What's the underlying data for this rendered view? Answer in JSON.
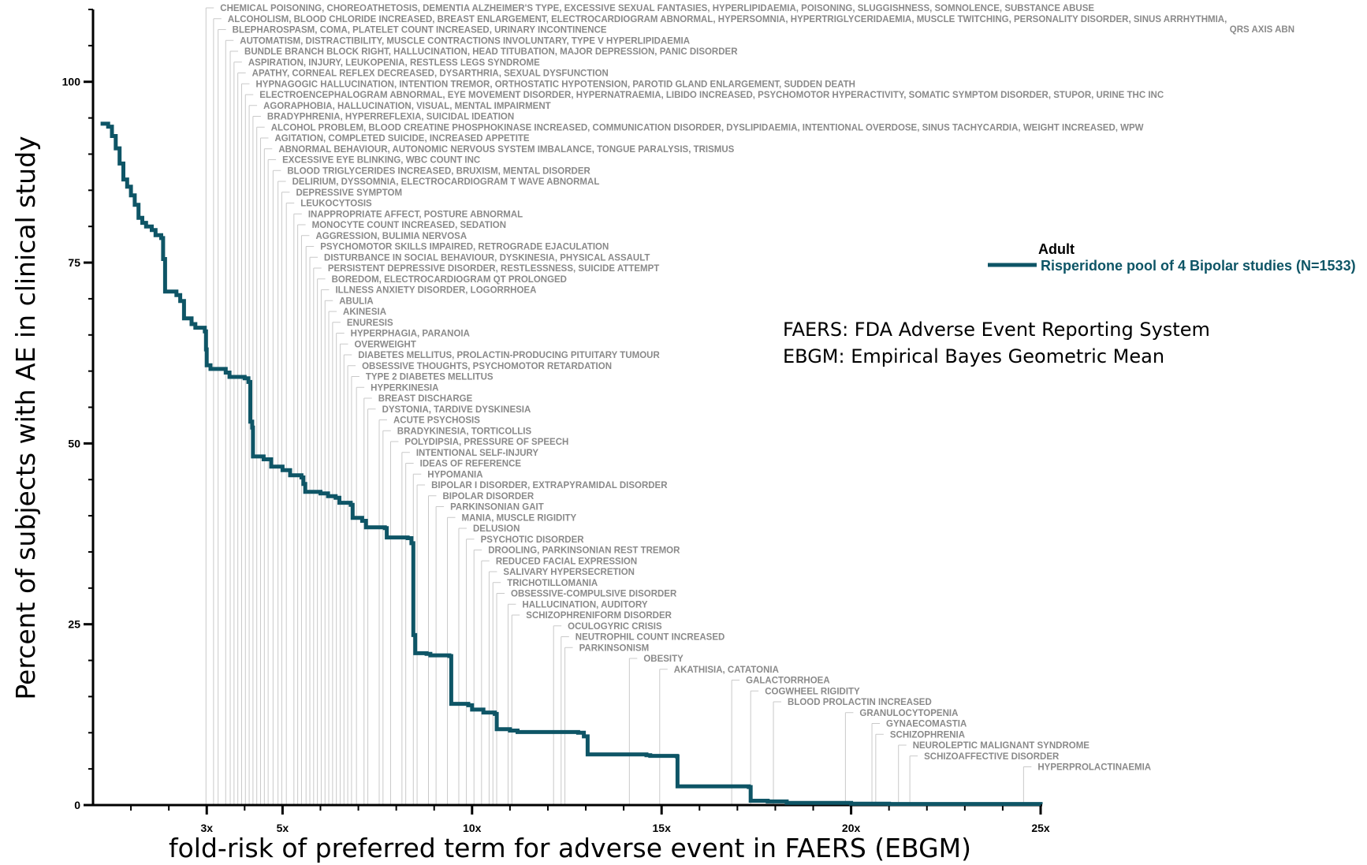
{
  "chart_data": {
    "type": "line",
    "xlabel": "fold-risk of preferred term for adverse event in FAERS (EBGM)",
    "ylabel": "Percent of subjects with AE in clinical study",
    "xlim": [
      0,
      25
    ],
    "ylim": [
      0,
      110
    ],
    "x_ticks": [
      {
        "value": 3,
        "label": "3x"
      },
      {
        "value": 5,
        "label": "5x"
      },
      {
        "value": 10,
        "label": "10x"
      },
      {
        "value": 15,
        "label": "15x"
      },
      {
        "value": 20,
        "label": "20x"
      },
      {
        "value": 25,
        "label": "25x"
      }
    ],
    "y_ticks": [
      {
        "value": 0,
        "label": "0"
      },
      {
        "value": 25,
        "label": "25"
      },
      {
        "value": 50,
        "label": "50"
      },
      {
        "value": 75,
        "label": "75"
      },
      {
        "value": 100,
        "label": "100"
      }
    ],
    "legend": {
      "title": "Adult",
      "position": "right",
      "entries": [
        {
          "name": "Risperidone pool of 4 Bipolar studies (N=1533)",
          "color": "#0e5566"
        }
      ]
    },
    "notes": [
      "FAERS: FDA Adverse Event Reporting System",
      "EBGM: Empirical Bayes Geometric Mean"
    ],
    "series": [
      {
        "name": "Risperidone pool of 4 Bipolar studies (N=1533)",
        "color": "#0e5566",
        "points": [
          [
            0.2,
            94.2
          ],
          [
            0.4,
            93.8
          ],
          [
            0.5,
            92.5
          ],
          [
            0.6,
            90.8
          ],
          [
            0.7,
            88.7
          ],
          [
            0.8,
            86.5
          ],
          [
            0.9,
            85.5
          ],
          [
            1.0,
            84.3
          ],
          [
            1.1,
            83.0
          ],
          [
            1.2,
            81.2
          ],
          [
            1.3,
            80.5
          ],
          [
            1.4,
            80.0
          ],
          [
            1.55,
            79.5
          ],
          [
            1.65,
            78.8
          ],
          [
            1.8,
            78.4
          ],
          [
            1.85,
            75.5
          ],
          [
            1.9,
            71.0
          ],
          [
            2.2,
            70.5
          ],
          [
            2.3,
            69.7
          ],
          [
            2.4,
            67.3
          ],
          [
            2.6,
            66.5
          ],
          [
            2.7,
            66.0
          ],
          [
            2.95,
            65.5
          ],
          [
            2.98,
            63.0
          ],
          [
            3.0,
            60.8
          ],
          [
            3.1,
            60.3
          ],
          [
            3.5,
            59.8
          ],
          [
            3.6,
            59.2
          ],
          [
            4.0,
            59.0
          ],
          [
            4.1,
            58.5
          ],
          [
            4.15,
            53.0
          ],
          [
            4.2,
            52.2
          ],
          [
            4.22,
            48.2
          ],
          [
            4.5,
            47.8
          ],
          [
            4.7,
            46.8
          ],
          [
            5.0,
            46.3
          ],
          [
            5.2,
            45.6
          ],
          [
            5.5,
            45.3
          ],
          [
            5.55,
            44.4
          ],
          [
            5.6,
            43.3
          ],
          [
            6.0,
            43.1
          ],
          [
            6.2,
            42.7
          ],
          [
            6.4,
            42.5
          ],
          [
            6.5,
            41.8
          ],
          [
            6.8,
            41.5
          ],
          [
            6.85,
            39.7
          ],
          [
            7.1,
            39.3
          ],
          [
            7.2,
            38.4
          ],
          [
            7.7,
            38.3
          ],
          [
            7.75,
            37.0
          ],
          [
            8.3,
            36.9
          ],
          [
            8.4,
            36.2
          ],
          [
            8.45,
            23.5
          ],
          [
            8.5,
            21.0
          ],
          [
            8.8,
            20.9
          ],
          [
            8.9,
            20.7
          ],
          [
            9.4,
            20.6
          ],
          [
            9.45,
            14.0
          ],
          [
            9.9,
            13.8
          ],
          [
            10.0,
            13.2
          ],
          [
            10.3,
            12.8
          ],
          [
            10.6,
            12.6
          ],
          [
            10.65,
            10.5
          ],
          [
            11.0,
            10.3
          ],
          [
            11.2,
            10.1
          ],
          [
            12.8,
            10.0
          ],
          [
            12.95,
            9.5
          ],
          [
            13.05,
            7.0
          ],
          [
            14.6,
            6.9
          ],
          [
            14.7,
            6.8
          ],
          [
            15.4,
            6.75
          ],
          [
            15.42,
            2.6
          ],
          [
            17.3,
            2.5
          ],
          [
            17.35,
            0.6
          ],
          [
            17.8,
            0.5
          ],
          [
            18.3,
            0.3
          ],
          [
            20.0,
            0.2
          ],
          [
            21.0,
            0.15
          ],
          [
            25.0,
            0.1
          ]
        ]
      }
    ],
    "annotations": [
      {
        "x": 2.98,
        "label": "CHEMICAL POISONING, CHOREOATHETOSIS, DEMENTIA ALZHEIMER'S TYPE, EXCESSIVE SEXUAL FANTASIES, HYPERLIPIDAEMIA, POISONING, SLUGGISHNESS, SOMNOLENCE, SUBSTANCE ABUSE"
      },
      {
        "x": 3.18,
        "label": "ALCOHOLISM, BLOOD CHLORIDE INCREASED, BREAST ENLARGEMENT, ELECTROCARDIOGRAM ABNORMAL, HYPERSOMNIA, HYPERTRIGLYCERIDAEMIA, MUSCLE TWITCHING, PERSONALITY DISORDER, SINUS ARRHYTHMIA,",
        "label2": "QRS AXIS ABN"
      },
      {
        "x": 3.3,
        "label": "BLEPHAROSPASM, COMA, PLATELET COUNT INCREASED, URINARY INCONTINENCE"
      },
      {
        "x": 3.5,
        "label": "AUTOMATISM, DISTRACTIBILITY, MUSCLE CONTRACTIONS INVOLUNTARY, TYPE V HYPERLIPIDAEMIA"
      },
      {
        "x": 3.62,
        "label": "BUNDLE BRANCH BLOCK RIGHT, HALLUCINATION, HEAD TITUBATION, MAJOR DEPRESSION, PANIC DISORDER"
      },
      {
        "x": 3.72,
        "label": "ASPIRATION, INJURY, LEUKOPENIA, RESTLESS LEGS SYNDROME"
      },
      {
        "x": 3.82,
        "label": "APATHY, CORNEAL REFLEX DECREASED, DYSARTHRIA, SEXUAL DYSFUNCTION"
      },
      {
        "x": 3.92,
        "label": "HYPNAGOGIC HALLUCINATION, INTENTION TREMOR, ORTHOSTATIC HYPOTENSION, PAROTID GLAND ENLARGEMENT, SUDDEN DEATH"
      },
      {
        "x": 4.02,
        "label": "ELECTROENCEPHALOGRAM ABNORMAL, EYE MOVEMENT DISORDER, HYPERNATRAEMIA, LIBIDO INCREASED, PSYCHOMOTOR HYPERACTIVITY, SOMATIC SYMPTOM DISORDER, STUPOR, URINE THC INC"
      },
      {
        "x": 4.12,
        "label": "AGORAPHOBIA, HALLUCINATION, VISUAL, MENTAL IMPAIRMENT"
      },
      {
        "x": 4.22,
        "label": "BRADYPHRENIA, HYPERREFLEXIA, SUICIDAL IDEATION"
      },
      {
        "x": 4.32,
        "label": "ALCOHOL PROBLEM, BLOOD CREATINE PHOSPHOKINASE INCREASED, COMMUNICATION DISORDER, DYSLIPIDAEMIA, INTENTIONAL OVERDOSE, SINUS TACHYCARDIA, WEIGHT INCREASED, WPW"
      },
      {
        "x": 4.42,
        "label": "AGITATION, COMPLETED SUICIDE, INCREASED APPETITE"
      },
      {
        "x": 4.52,
        "label": "ABNORMAL BEHAVIOUR, AUTONOMIC NERVOUS SYSTEM IMBALANCE, TONGUE PARALYSIS, TRISMUS"
      },
      {
        "x": 4.62,
        "label": "EXCESSIVE EYE BLINKING, WBC COUNT INC"
      },
      {
        "x": 4.75,
        "label": "BLOOD TRIGLYCERIDES INCREASED, BRUXISM, MENTAL DISORDER"
      },
      {
        "x": 4.88,
        "label": "DELIRIUM, DYSSOMNIA, ELECTROCARDIOGRAM T WAVE ABNORMAL"
      },
      {
        "x": 4.98,
        "label": "DEPRESSIVE SYMPTOM"
      },
      {
        "x": 5.1,
        "label": "LEUKOCYTOSIS"
      },
      {
        "x": 5.3,
        "label": "INAPPROPRIATE AFFECT, POSTURE ABNORMAL"
      },
      {
        "x": 5.4,
        "label": "MONOCYTE COUNT INCREASED, SEDATION"
      },
      {
        "x": 5.5,
        "label": "AGGRESSION, BULIMIA NERVOSA"
      },
      {
        "x": 5.62,
        "label": "PSYCHOMOTOR SKILLS IMPAIRED, RETROGRADE EJACULATION"
      },
      {
        "x": 5.72,
        "label": "DISTURBANCE IN SOCIAL BEHAVIOUR, DYSKINESIA, PHYSICAL ASSAULT"
      },
      {
        "x": 5.82,
        "label": "PERSISTENT DEPRESSIVE DISORDER, RESTLESSNESS, SUICIDE ATTEMPT"
      },
      {
        "x": 5.92,
        "label": "BOREDOM, ELECTROCARDIOGRAM QT PROLONGED"
      },
      {
        "x": 6.02,
        "label": "ILLNESS ANXIETY DISORDER, LOGORRHOEA"
      },
      {
        "x": 6.12,
        "label": "ABULIA"
      },
      {
        "x": 6.22,
        "label": "AKINESIA"
      },
      {
        "x": 6.32,
        "label": "ENURESIS"
      },
      {
        "x": 6.42,
        "label": "HYPERPHAGIA, PARANOIA"
      },
      {
        "x": 6.52,
        "label": "OVERWEIGHT"
      },
      {
        "x": 6.62,
        "label": "DIABETES MELLITUS, PROLACTIN-PRODUCING PITUITARY TUMOUR"
      },
      {
        "x": 6.72,
        "label": "OBSESSIVE THOUGHTS, PSYCHOMOTOR RETARDATION"
      },
      {
        "x": 6.82,
        "label": "TYPE 2 DIABETES MELLITUS"
      },
      {
        "x": 6.95,
        "label": "HYPERKINESIA"
      },
      {
        "x": 7.15,
        "label": "BREAST DISCHARGE"
      },
      {
        "x": 7.25,
        "label": "DYSTONIA, TARDIVE DYSKINESIA"
      },
      {
        "x": 7.55,
        "label": "ACUTE PSYCHOSIS"
      },
      {
        "x": 7.65,
        "label": "BRADYKINESIA, TORTICOLLIS"
      },
      {
        "x": 7.85,
        "label": "POLYDIPSIA, PRESSURE OF SPEECH"
      },
      {
        "x": 8.15,
        "label": "INTENTIONAL SELF-INJURY"
      },
      {
        "x": 8.25,
        "label": "IDEAS OF REFERENCE"
      },
      {
        "x": 8.45,
        "label": "HYPOMANIA"
      },
      {
        "x": 8.55,
        "label": "BIPOLAR I DISORDER, EXTRAPYRAMIDAL DISORDER"
      },
      {
        "x": 8.85,
        "label": "BIPOLAR DISORDER"
      },
      {
        "x": 9.05,
        "label": "PARKINSONIAN GAIT"
      },
      {
        "x": 9.35,
        "label": "MANIA, MUSCLE RIGIDITY"
      },
      {
        "x": 9.65,
        "label": "DELUSION"
      },
      {
        "x": 9.85,
        "label": "PSYCHOTIC DISORDER"
      },
      {
        "x": 10.05,
        "label": "DROOLING, PARKINSONIAN REST TREMOR"
      },
      {
        "x": 10.25,
        "label": "REDUCED FACIAL EXPRESSION"
      },
      {
        "x": 10.45,
        "label": "SALIVARY HYPERSECRETION"
      },
      {
        "x": 10.55,
        "label": "TRICHOTILLOMANIA"
      },
      {
        "x": 10.65,
        "label": "OBSESSIVE-COMPULSIVE DISORDER"
      },
      {
        "x": 10.95,
        "label": "HALLUCINATION, AUDITORY"
      },
      {
        "x": 11.05,
        "label": "SCHIZOPHRENIFORM DISORDER"
      },
      {
        "x": 12.15,
        "label": "OCULOGYRIC CRISIS"
      },
      {
        "x": 12.35,
        "label": "NEUTROPHIL COUNT INCREASED"
      },
      {
        "x": 12.45,
        "label": "PARKINSONISM"
      },
      {
        "x": 14.15,
        "label": "OBESITY"
      },
      {
        "x": 14.95,
        "label": "AKATHISIA, CATATONIA"
      },
      {
        "x": 16.85,
        "label": "GALACTORRHOEA"
      },
      {
        "x": 17.35,
        "label": "COGWHEEL RIGIDITY"
      },
      {
        "x": 17.95,
        "label": "BLOOD PROLACTIN INCREASED"
      },
      {
        "x": 19.85,
        "label": "GRANULOCYTOPENIA"
      },
      {
        "x": 20.55,
        "label": "GYNAECOMASTIA"
      },
      {
        "x": 20.65,
        "label": "SCHIZOPHRENIA"
      },
      {
        "x": 21.25,
        "label": "NEUROLEPTIC MALIGNANT SYNDROME"
      },
      {
        "x": 21.55,
        "label": "SCHIZOAFFECTIVE DISORDER"
      },
      {
        "x": 24.55,
        "label": "HYPERPROLACTINAEMIA"
      }
    ]
  }
}
